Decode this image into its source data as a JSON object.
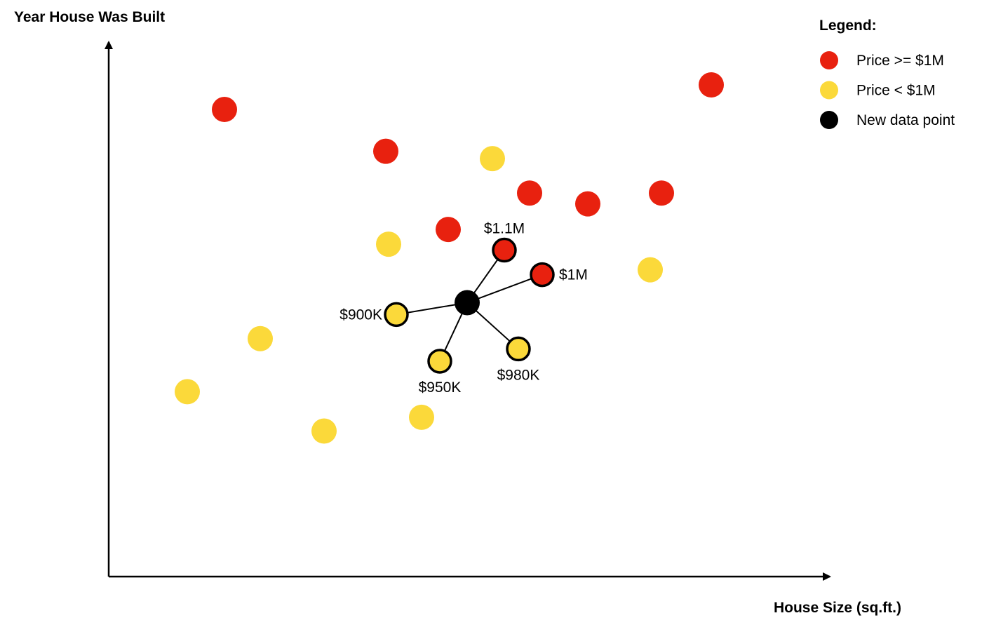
{
  "chart_data": {
    "type": "scatter",
    "ylabel": "Year House Was Built",
    "xlabel": "House Size (sq.ft.)",
    "grid": false,
    "legend_position": "top-right",
    "colors": {
      "high": "#e8210f",
      "low": "#fbd93a",
      "new": "#000000"
    },
    "legend": {
      "title": "Legend:",
      "items": [
        {
          "label": "Price >= $1M",
          "category": "high"
        },
        {
          "label": "Price < $1M",
          "category": "low"
        },
        {
          "label": "New data point",
          "category": "new"
        }
      ]
    },
    "points": [
      {
        "x": 16.5,
        "y": 95.0,
        "category": "high"
      },
      {
        "x": 39.5,
        "y": 86.5,
        "category": "high"
      },
      {
        "x": 54.7,
        "y": 85.0,
        "category": "low"
      },
      {
        "x": 60.0,
        "y": 78.0,
        "category": "high"
      },
      {
        "x": 68.3,
        "y": 75.8,
        "category": "high"
      },
      {
        "x": 78.8,
        "y": 78.0,
        "category": "high"
      },
      {
        "x": 85.9,
        "y": 100.0,
        "category": "high"
      },
      {
        "x": 48.4,
        "y": 70.6,
        "category": "high"
      },
      {
        "x": 39.9,
        "y": 67.6,
        "category": "low"
      },
      {
        "x": 77.2,
        "y": 62.4,
        "category": "low"
      },
      {
        "x": 21.6,
        "y": 48.4,
        "category": "low"
      },
      {
        "x": 11.2,
        "y": 37.6,
        "category": "low"
      },
      {
        "x": 30.7,
        "y": 29.6,
        "category": "low"
      },
      {
        "x": 44.6,
        "y": 32.4,
        "category": "low"
      }
    ],
    "new_point": {
      "x": 51.1,
      "y": 55.7,
      "category": "new"
    },
    "neighbors": [
      {
        "x": 56.4,
        "y": 66.4,
        "category": "high",
        "label": "$1.1M",
        "label_pos": "above"
      },
      {
        "x": 61.8,
        "y": 61.4,
        "category": "high",
        "label": "$1M",
        "label_pos": "right"
      },
      {
        "x": 41.0,
        "y": 53.3,
        "category": "low",
        "label": "$900K",
        "label_pos": "left"
      },
      {
        "x": 47.2,
        "y": 43.8,
        "category": "low",
        "label": "$950K",
        "label_pos": "below"
      },
      {
        "x": 58.4,
        "y": 46.3,
        "category": "low",
        "label": "$980K",
        "label_pos": "below"
      }
    ]
  }
}
